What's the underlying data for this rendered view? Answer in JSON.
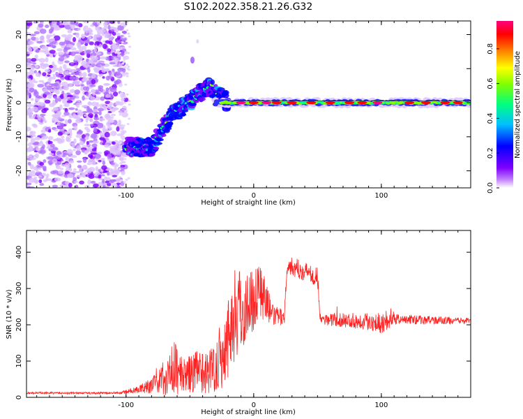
{
  "title": "S102.2022.358.21.26.G32",
  "chart_data": [
    {
      "type": "heatmap",
      "xlabel": "Height of straight line (km)",
      "ylabel": "Frequency (Hz)",
      "xlim": [
        -178,
        170
      ],
      "ylim": [
        -25,
        24
      ],
      "xticks": [
        -100,
        0,
        100
      ],
      "yticks": [
        -20,
        -10,
        0,
        10,
        20
      ],
      "colorbar": {
        "label": "Normalized spectral amplitude",
        "range": [
          0,
          0.96
        ],
        "ticks": [
          "0.0",
          "0.2",
          "0.4",
          "0.6",
          "0.8"
        ],
        "colormap": [
          "#ffffff",
          "#7f00ff",
          "#0000ff",
          "#00c0ff",
          "#00ff80",
          "#80ff00",
          "#ffff00",
          "#ff8000",
          "#ff0000",
          "#ff0080"
        ]
      },
      "regions": [
        {
          "x": [
            -178,
            -100
          ],
          "center_freq": 0,
          "spread": 25,
          "amplitude": 0.05
        },
        {
          "x": [
            -100,
            -80
          ],
          "center_freq": -13,
          "spread": 2,
          "amplitude": 0.3
        },
        {
          "x": [
            -80,
            -35
          ],
          "center_freq": -2,
          "spread": 4,
          "amplitude": 0.3
        },
        {
          "x": [
            -50,
            -45
          ],
          "center_freq": 12,
          "spread": 2,
          "amplitude": 0.05
        },
        {
          "x": [
            -35,
            170
          ],
          "center_freq": 0,
          "spread": 1,
          "amplitude": 0.9
        }
      ]
    },
    {
      "type": "line",
      "xlabel": "Height of straight line (km)",
      "ylabel": "SNR (10 * v/v)",
      "xlim": [
        -178,
        170
      ],
      "ylim": [
        0,
        460
      ],
      "xticks": [
        -100,
        0,
        100
      ],
      "yticks": [
        0,
        100,
        200,
        300,
        400
      ],
      "color": "#ff2020",
      "profile": [
        {
          "x": -178,
          "mean": 12,
          "noise": 3
        },
        {
          "x": -105,
          "mean": 12,
          "noise": 3
        },
        {
          "x": -90,
          "mean": 22,
          "noise": 10
        },
        {
          "x": -75,
          "mean": 40,
          "noise": 30
        },
        {
          "x": -62,
          "mean": 80,
          "noise": 80
        },
        {
          "x": -55,
          "mean": 60,
          "noise": 45
        },
        {
          "x": -45,
          "mean": 70,
          "noise": 60
        },
        {
          "x": -35,
          "mean": 70,
          "noise": 60
        },
        {
          "x": -25,
          "mean": 110,
          "noise": 90
        },
        {
          "x": -15,
          "mean": 230,
          "noise": 140
        },
        {
          "x": -5,
          "mean": 250,
          "noise": 100
        },
        {
          "x": 5,
          "mean": 300,
          "noise": 80
        },
        {
          "x": 15,
          "mean": 225,
          "noise": 30
        },
        {
          "x": 24,
          "mean": 220,
          "noise": 20
        },
        {
          "x": 26,
          "mean": 365,
          "noise": 25
        },
        {
          "x": 50,
          "mean": 335,
          "noise": 30
        },
        {
          "x": 52,
          "mean": 215,
          "noise": 15
        },
        {
          "x": 90,
          "mean": 210,
          "noise": 25
        },
        {
          "x": 100,
          "mean": 205,
          "noise": 30
        },
        {
          "x": 110,
          "mean": 215,
          "noise": 15
        },
        {
          "x": 170,
          "mean": 210,
          "noise": 8
        }
      ]
    }
  ]
}
